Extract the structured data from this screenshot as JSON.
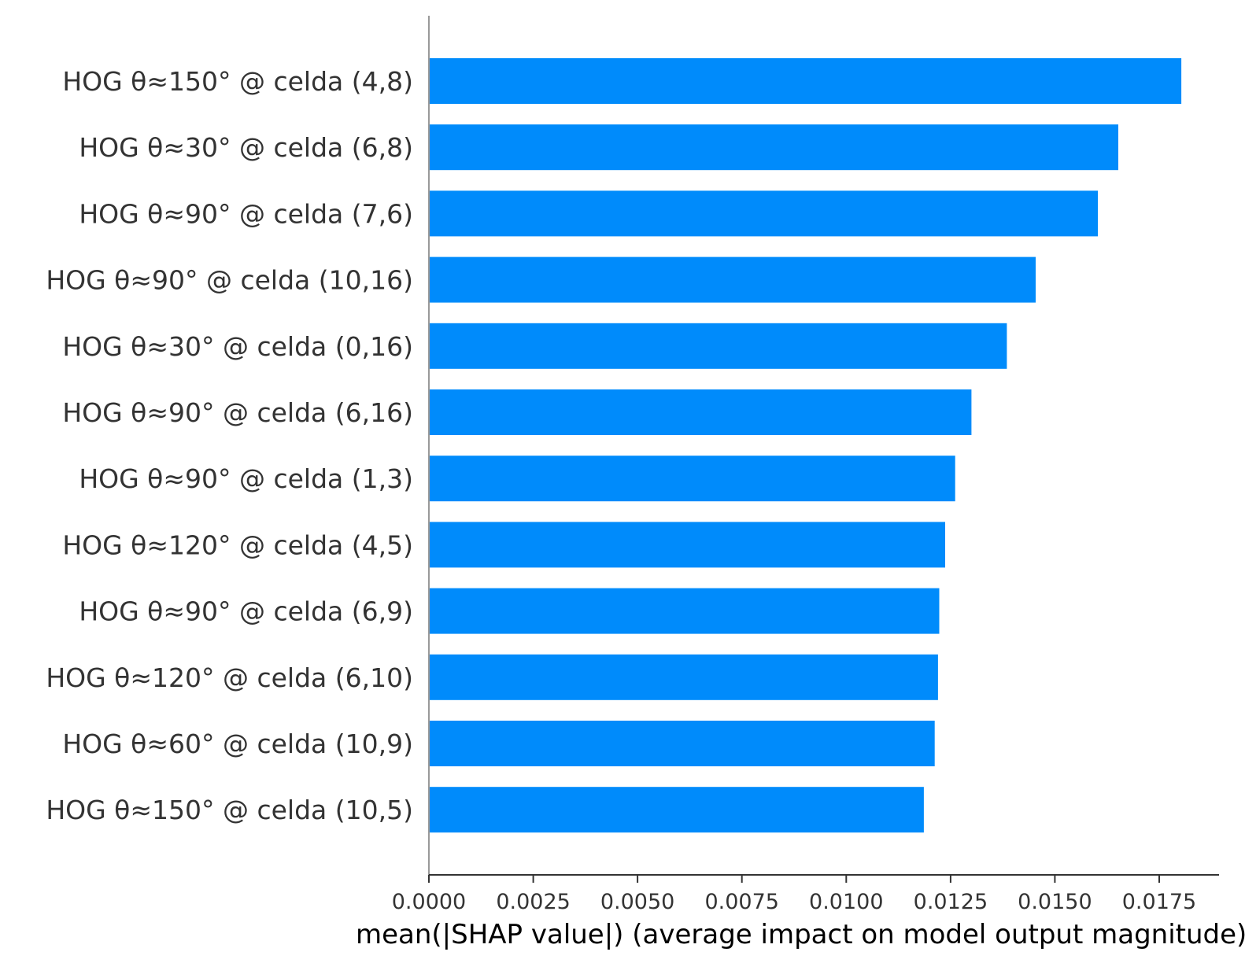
{
  "chart_data": {
    "type": "bar",
    "orientation": "horizontal",
    "categories": [
      "HOG θ≈150° @ celda (4,8)",
      "HOG θ≈30° @ celda (6,8)",
      "HOG θ≈90° @ celda (7,6)",
      "HOG θ≈90° @ celda (10,16)",
      "HOG θ≈30° @ celda (0,16)",
      "HOG θ≈90° @ celda (6,16)",
      "HOG θ≈90° @ celda (1,3)",
      "HOG θ≈120° @ celda (4,5)",
      "HOG θ≈90° @ celda (6,9)",
      "HOG θ≈120° @ celda (6,10)",
      "HOG θ≈60° @ celda (10,9)",
      "HOG θ≈150° @ celda (10,5)"
    ],
    "values": [
      0.01803,
      0.01652,
      0.01603,
      0.01454,
      0.01385,
      0.013,
      0.01261,
      0.01237,
      0.01223,
      0.0122,
      0.01212,
      0.01186
    ],
    "title": "",
    "xlabel": "mean(|SHAP value|) (average impact on model output magnitude)",
    "ylabel": "",
    "xlim": [
      0,
      0.0189
    ],
    "xticks": [
      0.0,
      0.0025,
      0.005,
      0.0075,
      0.01,
      0.0125,
      0.015,
      0.0175
    ],
    "xtick_labels": [
      "0.0000",
      "0.0025",
      "0.0050",
      "0.0075",
      "0.0100",
      "0.0125",
      "0.0150",
      "0.0175"
    ],
    "grid": false,
    "legend": "none",
    "colors": {
      "bar": "#008bfb",
      "axis": "#333333",
      "spine_left": "#999999"
    }
  }
}
